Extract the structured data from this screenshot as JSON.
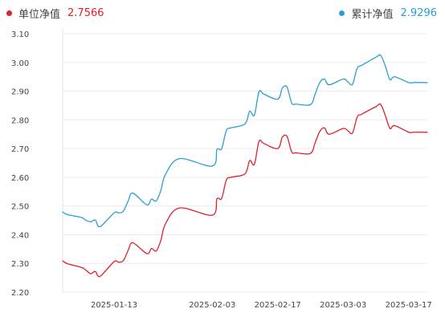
{
  "legend": {
    "unit_nav": {
      "label": "单位净值",
      "value": "2.7566",
      "color": "#e0202c"
    },
    "acc_nav": {
      "label": "累计净值",
      "value": "2.9296",
      "color": "#2a9fd0"
    }
  },
  "chart_data": {
    "type": "line",
    "title": "",
    "xlabel": "",
    "ylabel": "",
    "ylim": [
      2.2,
      3.1
    ],
    "grid": true,
    "legend_position": "top",
    "yticks": [
      "3.10",
      "3.00",
      "2.90",
      "2.80",
      "2.70",
      "2.60",
      "2.50",
      "2.40",
      "2.30",
      "2.20"
    ],
    "xticks": [
      "2025-01-13",
      "2025-02-03",
      "2025-02-17",
      "2025-03-03",
      "2025-03-17"
    ],
    "x": [
      "2025-01-02",
      "2025-01-03",
      "2025-01-06",
      "2025-01-07",
      "2025-01-08",
      "2025-01-09",
      "2025-01-10",
      "2025-01-13",
      "2025-01-14",
      "2025-01-15",
      "2025-01-16",
      "2025-01-17",
      "2025-01-20",
      "2025-01-21",
      "2025-01-22",
      "2025-01-23",
      "2025-01-24",
      "2025-01-27",
      "2025-02-03",
      "2025-02-04",
      "2025-02-05",
      "2025-02-06",
      "2025-02-07",
      "2025-02-10",
      "2025-02-11",
      "2025-02-12",
      "2025-02-13",
      "2025-02-14",
      "2025-02-17",
      "2025-02-18",
      "2025-02-19",
      "2025-02-20",
      "2025-02-21",
      "2025-02-24",
      "2025-02-25",
      "2025-02-26",
      "2025-02-27",
      "2025-02-28",
      "2025-03-03",
      "2025-03-04",
      "2025-03-05",
      "2025-03-06",
      "2025-03-07",
      "2025-03-10",
      "2025-03-11",
      "2025-03-12",
      "2025-03-13",
      "2025-03-14",
      "2025-03-17",
      "2025-03-18",
      "2025-03-19",
      "2025-03-20",
      "2025-03-21"
    ],
    "series": [
      {
        "name": "单位净值",
        "color": "#e0202c",
        "values": [
          2.309,
          2.299,
          2.286,
          2.276,
          2.264,
          2.272,
          2.255,
          2.306,
          2.304,
          2.31,
          2.345,
          2.372,
          2.334,
          2.352,
          2.343,
          2.38,
          2.438,
          2.493,
          2.468,
          2.525,
          2.526,
          2.59,
          2.6,
          2.612,
          2.658,
          2.645,
          2.725,
          2.718,
          2.7,
          2.74,
          2.742,
          2.688,
          2.685,
          2.683,
          2.72,
          2.76,
          2.772,
          2.75,
          2.77,
          2.762,
          2.754,
          2.81,
          2.82,
          2.846,
          2.854,
          2.816,
          2.77,
          2.78,
          2.757,
          2.757,
          2.757,
          2.757,
          2.7566
        ]
      },
      {
        "name": "累计净值",
        "color": "#2a9fd0",
        "values": [
          2.479,
          2.47,
          2.46,
          2.45,
          2.445,
          2.451,
          2.428,
          2.476,
          2.476,
          2.482,
          2.517,
          2.545,
          2.504,
          2.524,
          2.517,
          2.554,
          2.61,
          2.665,
          2.639,
          2.697,
          2.699,
          2.762,
          2.772,
          2.786,
          2.83,
          2.816,
          2.898,
          2.89,
          2.872,
          2.911,
          2.914,
          2.858,
          2.855,
          2.853,
          2.89,
          2.93,
          2.942,
          2.922,
          2.942,
          2.932,
          2.924,
          2.98,
          2.99,
          3.018,
          3.025,
          2.988,
          2.94,
          2.95,
          2.93,
          2.93,
          2.93,
          2.93,
          2.9296
        ]
      }
    ]
  }
}
